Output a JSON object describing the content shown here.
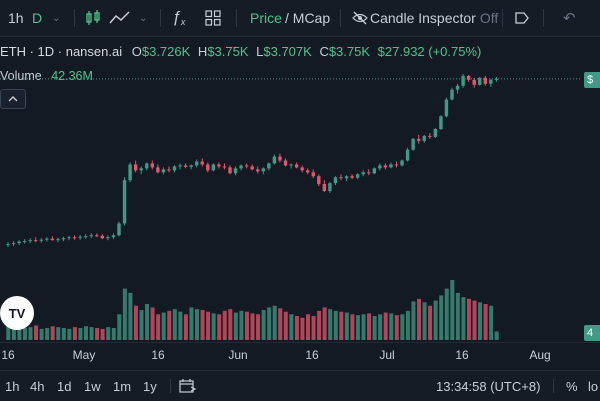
{
  "toolbar": {
    "interval": "1h",
    "interval_selected": "D",
    "price_label": "Price",
    "mcap_label": "/ MCap",
    "candle_inspector_label": "Candle Inspector",
    "candle_inspector_state": "Off"
  },
  "legend": {
    "symbol": "ETH · 1D · nansen.ai",
    "open_key": "O",
    "open_value": "$3.726K",
    "high_key": "H",
    "high_value": "$3.75K",
    "low_key": "L",
    "low_value": "$3.707K",
    "close_key": "C",
    "close_value": "$3.75K",
    "change": "$27.932 (+0.75%)"
  },
  "volume": {
    "label": "Volume",
    "value": "42.36M"
  },
  "logo_text": "TV",
  "right_axis": {
    "top_tag": "$",
    "bottom_tag": "4"
  },
  "xaxis": {
    "labels": [
      "16",
      "May",
      "16",
      "Jun",
      "16",
      "Jul",
      "16",
      "Aug"
    ]
  },
  "bottombar": {
    "ranges": [
      "1h",
      "4h",
      "1d",
      "1w",
      "1m",
      "1y"
    ],
    "time": "13:34:58 (UTC+8)",
    "percent": "%",
    "log": "lo"
  },
  "colors": {
    "up": "#3f9b86",
    "down": "#e5566a",
    "accent": "#4ec48a",
    "background": "#141a24"
  },
  "chart_data": {
    "type": "candlestick",
    "series": [
      {
        "name": "price",
        "ohlc": [
          [
            2960,
            2990,
            2940,
            2970
          ],
          [
            2970,
            3000,
            2950,
            2980
          ],
          [
            2980,
            3010,
            2960,
            2995
          ],
          [
            2995,
            3020,
            2975,
            3000
          ],
          [
            3000,
            3030,
            2980,
            3010
          ],
          [
            3010,
            3040,
            2990,
            3005
          ],
          [
            3005,
            3030,
            2985,
            3015
          ],
          [
            3015,
            3040,
            2995,
            3025
          ],
          [
            3025,
            3050,
            3005,
            3010
          ],
          [
            3010,
            3035,
            2990,
            3020
          ],
          [
            3020,
            3045,
            3000,
            3030
          ],
          [
            3030,
            3055,
            3010,
            3040
          ],
          [
            3040,
            3060,
            3015,
            3035
          ],
          [
            3035,
            3060,
            3015,
            3045
          ],
          [
            3045,
            3070,
            3025,
            3050
          ],
          [
            3050,
            3080,
            3030,
            3060
          ],
          [
            3060,
            3080,
            3040,
            3055
          ],
          [
            3055,
            3070,
            3020,
            3030
          ],
          [
            3030,
            3060,
            3010,
            3040
          ],
          [
            3040,
            3080,
            3020,
            3060
          ],
          [
            3060,
            3200,
            3050,
            3180
          ],
          [
            3180,
            3650,
            3160,
            3620
          ],
          [
            3620,
            3800,
            3600,
            3780
          ],
          [
            3780,
            3820,
            3700,
            3720
          ],
          [
            3720,
            3760,
            3680,
            3740
          ],
          [
            3740,
            3800,
            3720,
            3790
          ],
          [
            3790,
            3820,
            3730,
            3750
          ],
          [
            3750,
            3780,
            3690,
            3700
          ],
          [
            3700,
            3750,
            3680,
            3730
          ],
          [
            3730,
            3760,
            3700,
            3720
          ],
          [
            3720,
            3770,
            3700,
            3760
          ],
          [
            3760,
            3790,
            3730,
            3770
          ],
          [
            3770,
            3790,
            3740,
            3755
          ],
          [
            3755,
            3780,
            3730,
            3770
          ],
          [
            3770,
            3830,
            3750,
            3810
          ],
          [
            3810,
            3840,
            3760,
            3780
          ],
          [
            3780,
            3800,
            3700,
            3720
          ],
          [
            3720,
            3790,
            3710,
            3780
          ],
          [
            3780,
            3800,
            3740,
            3760
          ],
          [
            3760,
            3790,
            3730,
            3750
          ],
          [
            3750,
            3770,
            3680,
            3690
          ],
          [
            3690,
            3760,
            3670,
            3740
          ],
          [
            3740,
            3780,
            3720,
            3770
          ],
          [
            3770,
            3790,
            3740,
            3760
          ],
          [
            3760,
            3780,
            3720,
            3730
          ],
          [
            3730,
            3760,
            3690,
            3710
          ],
          [
            3710,
            3750,
            3680,
            3740
          ],
          [
            3740,
            3800,
            3720,
            3790
          ],
          [
            3790,
            3880,
            3780,
            3860
          ],
          [
            3860,
            3890,
            3800,
            3820
          ],
          [
            3820,
            3840,
            3760,
            3770
          ],
          [
            3770,
            3790,
            3740,
            3780
          ],
          [
            3780,
            3800,
            3740,
            3750
          ],
          [
            3750,
            3770,
            3700,
            3720
          ],
          [
            3720,
            3740,
            3680,
            3700
          ],
          [
            3700,
            3730,
            3640,
            3660
          ],
          [
            3660,
            3680,
            3560,
            3580
          ],
          [
            3580,
            3620,
            3500,
            3510
          ],
          [
            3510,
            3600,
            3490,
            3590
          ],
          [
            3590,
            3660,
            3570,
            3650
          ],
          [
            3650,
            3680,
            3620,
            3640
          ],
          [
            3640,
            3670,
            3610,
            3660
          ],
          [
            3660,
            3680,
            3630,
            3645
          ],
          [
            3645,
            3690,
            3630,
            3680
          ],
          [
            3680,
            3720,
            3660,
            3700
          ],
          [
            3700,
            3730,
            3670,
            3690
          ],
          [
            3690,
            3750,
            3680,
            3740
          ],
          [
            3740,
            3790,
            3720,
            3770
          ],
          [
            3770,
            3790,
            3730,
            3750
          ],
          [
            3750,
            3800,
            3740,
            3780
          ],
          [
            3780,
            3810,
            3750,
            3770
          ],
          [
            3770,
            3830,
            3760,
            3820
          ],
          [
            3820,
            3950,
            3810,
            3930
          ],
          [
            3930,
            4050,
            3920,
            4040
          ],
          [
            4040,
            4080,
            3990,
            4020
          ],
          [
            4020,
            4080,
            4000,
            4070
          ],
          [
            4070,
            4100,
            4040,
            4060
          ],
          [
            4060,
            4150,
            4050,
            4140
          ],
          [
            4140,
            4280,
            4130,
            4270
          ],
          [
            4270,
            4460,
            4260,
            4440
          ],
          [
            4440,
            4560,
            4430,
            4540
          ],
          [
            4540,
            4600,
            4500,
            4580
          ],
          [
            4580,
            4700,
            4560,
            4680
          ],
          [
            4680,
            4690,
            4620,
            4640
          ],
          [
            4640,
            4660,
            4560,
            4590
          ],
          [
            4590,
            4670,
            4580,
            4660
          ],
          [
            4660,
            4680,
            4580,
            4600
          ],
          [
            4600,
            4650,
            4570,
            4640
          ],
          [
            4640,
            4670,
            4620,
            4650
          ]
        ]
      },
      {
        "name": "volume",
        "values": [
          18,
          20,
          16,
          14,
          15,
          17,
          13,
          14,
          16,
          15,
          14,
          13,
          15,
          14,
          16,
          15,
          14,
          13,
          15,
          14,
          30,
          60,
          55,
          40,
          35,
          42,
          38,
          30,
          32,
          34,
          36,
          33,
          30,
          38,
          36,
          35,
          33,
          31,
          30,
          34,
          36,
          32,
          34,
          33,
          31,
          30,
          35,
          38,
          40,
          37,
          33,
          30,
          28,
          26,
          30,
          28,
          34,
          38,
          36,
          34,
          33,
          32,
          30,
          29,
          30,
          31,
          28,
          30,
          32,
          31,
          29,
          30,
          34,
          45,
          48,
          44,
          40,
          46,
          52,
          60,
          70,
          55,
          50,
          48,
          46,
          44,
          42,
          40,
          10
        ]
      }
    ],
    "xaxis_labels": [
      "16",
      "May",
      "16",
      "Jun",
      "16",
      "Jul",
      "16",
      "Aug"
    ]
  }
}
